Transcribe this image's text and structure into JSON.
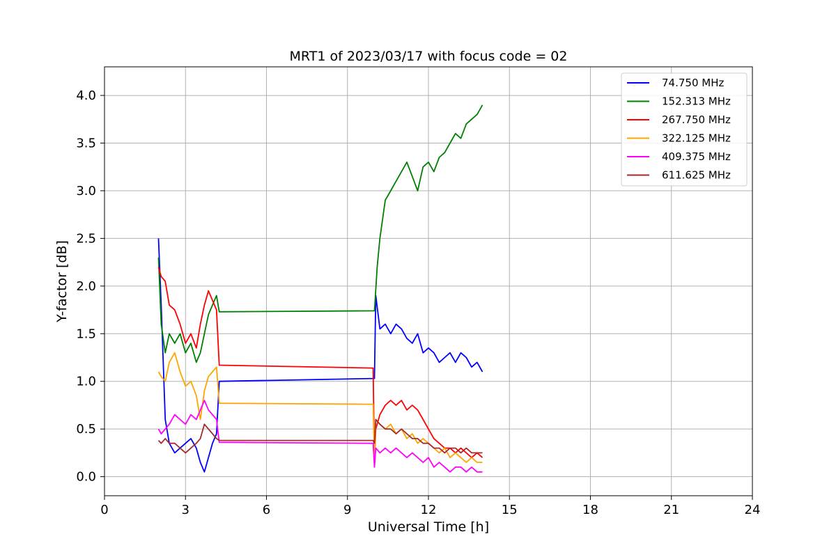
{
  "chart_data": {
    "type": "line",
    "title": "MRT1 of 2023/03/17 with focus code = 02",
    "xlabel": "Universal Time [h]",
    "ylabel": "Y-factor [dB]",
    "xlim": [
      0,
      24
    ],
    "ylim": [
      -0.2,
      4.3
    ],
    "xticks": [
      0,
      3,
      6,
      9,
      12,
      15,
      18,
      21,
      24
    ],
    "yticks": [
      0.0,
      0.5,
      1.0,
      1.5,
      2.0,
      2.5,
      3.0,
      3.5,
      4.0
    ],
    "xtick_labels": [
      "0",
      "3",
      "6",
      "9",
      "12",
      "15",
      "18",
      "21",
      "24"
    ],
    "ytick_labels": [
      "0.0",
      "0.5",
      "1.0",
      "1.5",
      "2.0",
      "2.5",
      "3.0",
      "3.5",
      "4.0"
    ],
    "grid": true,
    "legend_position": "top-right",
    "series": [
      {
        "name": "  74.750 MHz",
        "color": "#0000ff",
        "x": [
          2.0,
          2.1,
          2.25,
          2.4,
          2.6,
          2.8,
          3.0,
          3.2,
          3.4,
          3.55,
          3.7,
          3.85,
          4.0,
          4.15,
          4.25,
          10.0,
          10.05,
          10.2,
          10.4,
          10.6,
          10.8,
          11.0,
          11.2,
          11.4,
          11.6,
          11.8,
          12.0,
          12.2,
          12.4,
          12.6,
          12.8,
          13.0,
          13.2,
          13.4,
          13.6,
          13.8,
          14.0
        ],
        "y": [
          2.5,
          1.8,
          0.6,
          0.35,
          0.25,
          0.3,
          0.35,
          0.4,
          0.3,
          0.15,
          0.05,
          0.2,
          0.35,
          0.45,
          1.0,
          1.03,
          1.9,
          1.55,
          1.6,
          1.5,
          1.6,
          1.55,
          1.45,
          1.4,
          1.5,
          1.3,
          1.35,
          1.3,
          1.2,
          1.25,
          1.3,
          1.2,
          1.3,
          1.25,
          1.15,
          1.2,
          1.1
        ]
      },
      {
        "name": "152.313 MHz",
        "color": "#008000",
        "x": [
          2.0,
          2.1,
          2.25,
          2.4,
          2.6,
          2.8,
          3.0,
          3.2,
          3.4,
          3.55,
          3.7,
          3.85,
          4.0,
          4.15,
          4.25,
          10.0,
          10.1,
          10.2,
          10.4,
          10.6,
          10.8,
          11.0,
          11.2,
          11.4,
          11.6,
          11.8,
          12.0,
          12.2,
          12.4,
          12.6,
          12.8,
          13.0,
          13.2,
          13.4,
          13.6,
          13.8,
          14.0
        ],
        "y": [
          2.3,
          1.6,
          1.3,
          1.5,
          1.4,
          1.5,
          1.3,
          1.4,
          1.2,
          1.3,
          1.5,
          1.7,
          1.8,
          1.9,
          1.73,
          1.74,
          2.2,
          2.5,
          2.9,
          3.0,
          3.1,
          3.2,
          3.3,
          3.15,
          3.0,
          3.25,
          3.3,
          3.2,
          3.35,
          3.4,
          3.5,
          3.6,
          3.55,
          3.7,
          3.75,
          3.8,
          3.9
        ]
      },
      {
        "name": "267.750 MHz",
        "color": "#ff0000",
        "x": [
          2.0,
          2.1,
          2.25,
          2.4,
          2.6,
          2.8,
          3.0,
          3.2,
          3.4,
          3.55,
          3.7,
          3.85,
          4.0,
          4.15,
          4.25,
          9.95,
          10.0,
          10.05,
          10.2,
          10.4,
          10.6,
          10.8,
          11.0,
          11.2,
          11.4,
          11.6,
          11.8,
          12.0,
          12.2,
          12.4,
          12.6,
          12.8,
          13.0,
          13.2,
          13.4,
          13.6,
          13.8,
          14.0
        ],
        "y": [
          2.2,
          2.1,
          2.05,
          1.8,
          1.75,
          1.6,
          1.4,
          1.5,
          1.35,
          1.6,
          1.8,
          1.95,
          1.85,
          1.75,
          1.17,
          1.14,
          0.15,
          0.5,
          0.65,
          0.75,
          0.8,
          0.75,
          0.8,
          0.7,
          0.75,
          0.7,
          0.6,
          0.5,
          0.4,
          0.35,
          0.3,
          0.3,
          0.25,
          0.3,
          0.25,
          0.2,
          0.25,
          0.2
        ]
      },
      {
        "name": "322.125 MHz",
        "color": "#ffa500",
        "x": [
          2.0,
          2.1,
          2.25,
          2.4,
          2.6,
          2.8,
          3.0,
          3.2,
          3.4,
          3.55,
          3.7,
          3.85,
          4.0,
          4.15,
          4.25,
          9.95,
          10.0,
          10.05,
          10.2,
          10.4,
          10.6,
          10.8,
          11.0,
          11.2,
          11.4,
          11.6,
          11.8,
          12.0,
          12.2,
          12.4,
          12.6,
          12.8,
          13.0,
          13.2,
          13.4,
          13.6,
          13.8,
          14.0
        ],
        "y": [
          1.1,
          1.05,
          1.0,
          1.2,
          1.3,
          1.1,
          0.95,
          1.0,
          0.85,
          0.6,
          0.9,
          1.05,
          1.1,
          1.15,
          0.77,
          0.76,
          0.1,
          0.6,
          0.55,
          0.5,
          0.55,
          0.45,
          0.5,
          0.4,
          0.45,
          0.35,
          0.4,
          0.35,
          0.3,
          0.25,
          0.3,
          0.2,
          0.25,
          0.2,
          0.15,
          0.2,
          0.15,
          0.15
        ]
      },
      {
        "name": "409.375 MHz",
        "color": "#ff00ff",
        "x": [
          2.0,
          2.1,
          2.25,
          2.4,
          2.6,
          2.8,
          3.0,
          3.2,
          3.4,
          3.55,
          3.7,
          3.85,
          4.0,
          4.15,
          4.25,
          9.95,
          10.0,
          10.05,
          10.2,
          10.4,
          10.6,
          10.8,
          11.0,
          11.2,
          11.4,
          11.6,
          11.8,
          12.0,
          12.2,
          12.4,
          12.6,
          12.8,
          13.0,
          13.2,
          13.4,
          13.6,
          13.8,
          14.0
        ],
        "y": [
          0.5,
          0.45,
          0.5,
          0.55,
          0.65,
          0.6,
          0.55,
          0.65,
          0.6,
          0.7,
          0.8,
          0.7,
          0.65,
          0.6,
          0.36,
          0.35,
          0.1,
          0.3,
          0.25,
          0.3,
          0.25,
          0.3,
          0.25,
          0.2,
          0.25,
          0.2,
          0.15,
          0.2,
          0.1,
          0.15,
          0.1,
          0.05,
          0.1,
          0.1,
          0.05,
          0.1,
          0.05,
          0.05
        ]
      },
      {
        "name": "611.625 MHz",
        "color": "#a52a2a",
        "x": [
          2.0,
          2.1,
          2.25,
          2.4,
          2.6,
          2.8,
          3.0,
          3.2,
          3.4,
          3.55,
          3.7,
          3.85,
          4.0,
          4.15,
          4.25,
          9.95,
          10.0,
          10.05,
          10.2,
          10.4,
          10.6,
          10.8,
          11.0,
          11.2,
          11.4,
          11.6,
          11.8,
          12.0,
          12.2,
          12.4,
          12.6,
          12.8,
          13.0,
          13.2,
          13.4,
          13.6,
          13.8,
          14.0
        ],
        "y": [
          0.38,
          0.35,
          0.4,
          0.35,
          0.35,
          0.3,
          0.25,
          0.3,
          0.35,
          0.4,
          0.55,
          0.5,
          0.45,
          0.4,
          0.38,
          0.38,
          0.35,
          0.6,
          0.55,
          0.5,
          0.5,
          0.45,
          0.5,
          0.45,
          0.4,
          0.4,
          0.35,
          0.35,
          0.3,
          0.3,
          0.25,
          0.3,
          0.3,
          0.25,
          0.3,
          0.25,
          0.25,
          0.25
        ]
      }
    ]
  }
}
